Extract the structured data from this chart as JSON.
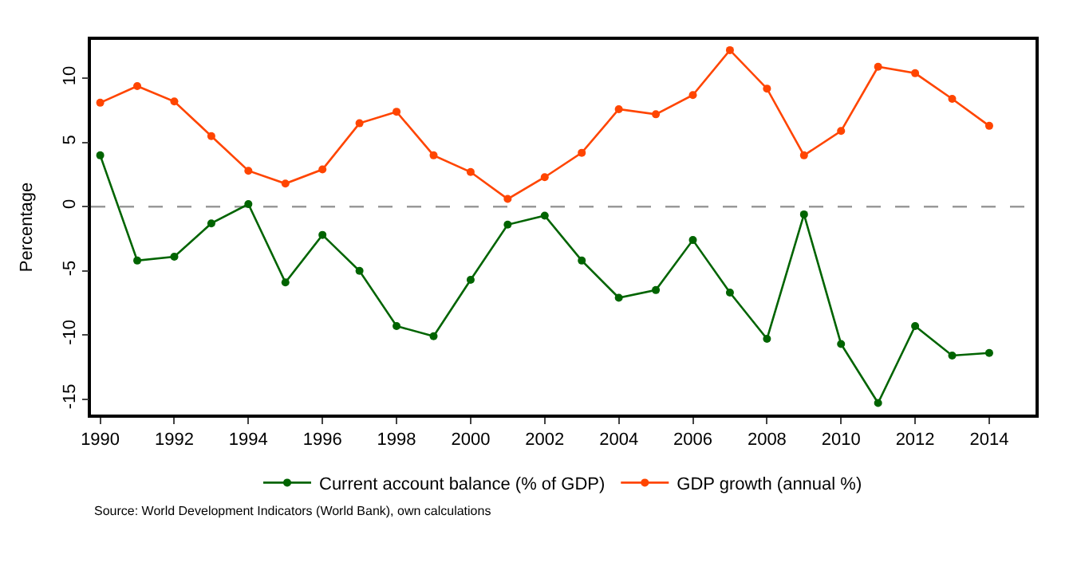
{
  "chart_data": {
    "type": "line",
    "ylabel": "Percentage",
    "x": [
      1990,
      1991,
      1992,
      1993,
      1994,
      1995,
      1996,
      1997,
      1998,
      1999,
      2000,
      2001,
      2002,
      2003,
      2004,
      2005,
      2006,
      2007,
      2008,
      2009,
      2010,
      2011,
      2012,
      2013,
      2014
    ],
    "series": [
      {
        "name": "Current account balance (% of GDP)",
        "color": "#006400",
        "values": [
          4.0,
          -4.2,
          -3.9,
          -1.3,
          0.2,
          -5.9,
          -2.2,
          -5.0,
          -9.3,
          -10.1,
          -5.7,
          -1.4,
          -0.7,
          -4.2,
          -7.1,
          -6.5,
          -2.6,
          -6.7,
          -10.3,
          -0.6,
          -10.7,
          -15.3,
          -9.3,
          -11.6,
          -11.4
        ]
      },
      {
        "name": "GDP growth (annual %)",
        "color": "#ff4500",
        "values": [
          8.1,
          9.4,
          8.2,
          5.5,
          2.8,
          1.8,
          2.9,
          6.5,
          7.4,
          4.0,
          2.7,
          0.6,
          2.3,
          4.2,
          7.6,
          7.2,
          8.7,
          12.2,
          9.2,
          4.0,
          5.9,
          10.9,
          10.4,
          8.4,
          6.3
        ]
      }
    ],
    "xlim": [
      1989.75,
      2015.25
    ],
    "xticks": [
      1990,
      1992,
      1994,
      1996,
      1998,
      2000,
      2002,
      2004,
      2006,
      2008,
      2010,
      2012,
      2014
    ],
    "ylim": [
      -16.2,
      13
    ],
    "yticks": [
      -15,
      -10,
      -5,
      0,
      5,
      10
    ],
    "ref_lines": [
      {
        "axis": "y",
        "value": 0,
        "color": "#999999",
        "line_style": "dashed"
      }
    ],
    "marker": "circle",
    "line_style": "solid",
    "grid": false,
    "legend": "bottom",
    "annotations": [
      "Source: World Development Indicators (World Bank), own calculations"
    ]
  }
}
